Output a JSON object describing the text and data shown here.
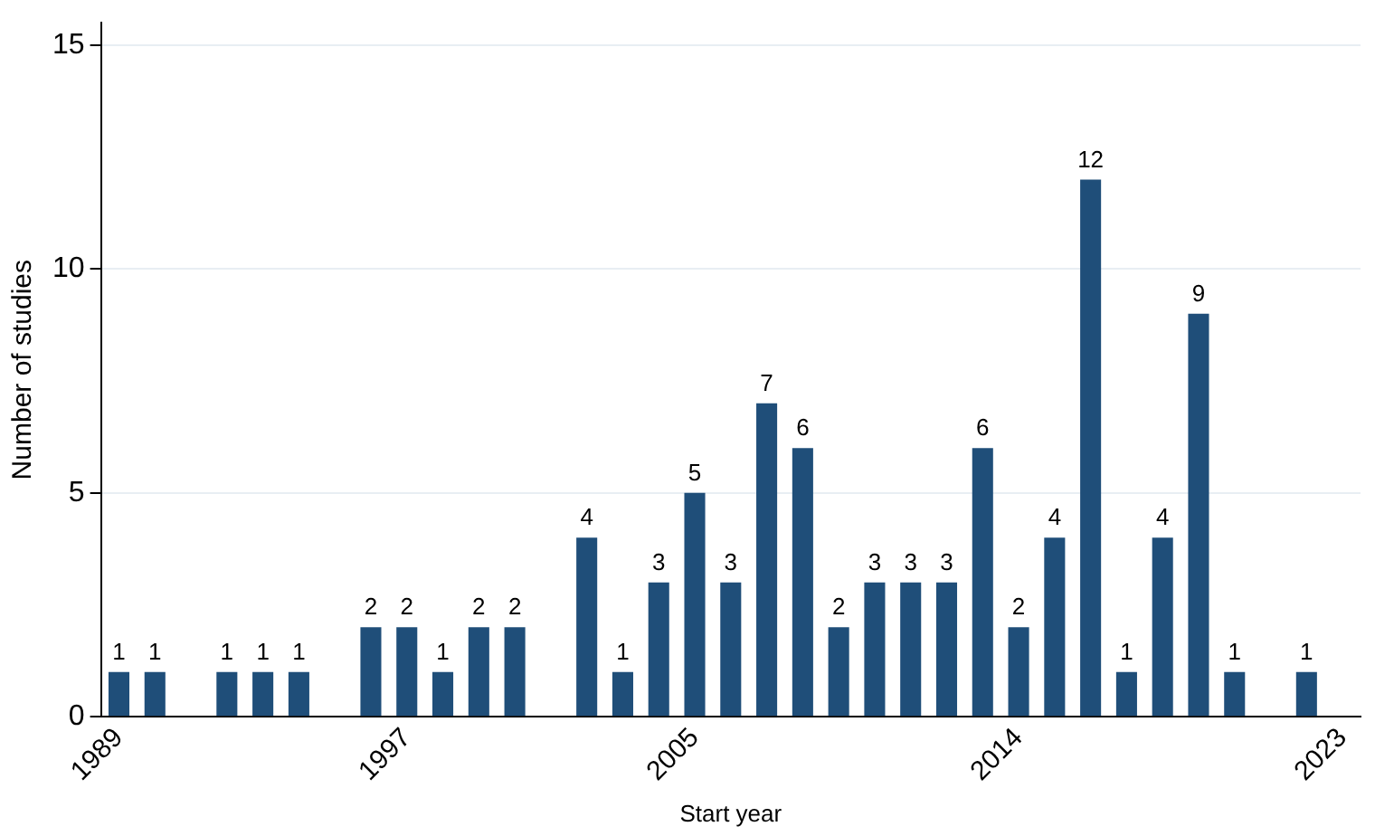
{
  "chart_data": {
    "type": "bar",
    "xlabel": "Start year",
    "ylabel": "Number of studies",
    "categories": [
      "1989",
      null,
      null,
      null,
      null,
      null,
      null,
      null,
      "1997",
      null,
      null,
      null,
      null,
      null,
      null,
      null,
      "2005",
      null,
      null,
      null,
      null,
      null,
      null,
      null,
      null,
      "2014",
      null,
      null,
      null,
      null,
      null,
      null,
      null,
      null,
      "2023"
    ],
    "values": [
      1,
      1,
      null,
      1,
      1,
      1,
      null,
      2,
      2,
      1,
      2,
      2,
      null,
      4,
      1,
      3,
      5,
      3,
      7,
      6,
      2,
      3,
      3,
      3,
      6,
      2,
      4,
      12,
      1,
      4,
      9,
      1,
      null,
      1,
      null
    ],
    "color": "#1f4e79",
    "ylim": [
      0,
      15.5
    ],
    "yticks": [
      0,
      5,
      10,
      15
    ],
    "grid": "y",
    "legend": false,
    "data_labels": true
  }
}
